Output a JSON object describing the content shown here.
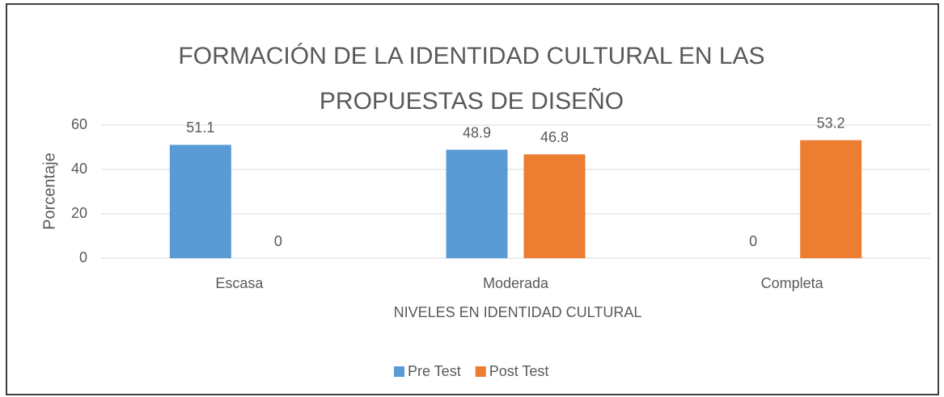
{
  "chart_data": {
    "type": "bar",
    "title": "FORMACIÓN DE LA IDENTIDAD CULTURAL EN LAS PROPUESTAS DE DISEÑO",
    "x_label": "NIVELES EN IDENTIDAD CULTURAL",
    "y_label": "Porcentaje",
    "categories": [
      "Escasa",
      "Moderada",
      "Completa"
    ],
    "series": [
      {
        "name": "Pre Test",
        "color": "#5b9bd5",
        "values": [
          51.1,
          48.9,
          0
        ]
      },
      {
        "name": "Post Test",
        "color": "#ed7d31",
        "values": [
          0,
          46.8,
          53.2
        ]
      }
    ],
    "ylim": [
      0,
      60
    ],
    "yticks": [
      0,
      20,
      40,
      60
    ],
    "grid": true,
    "legend": "bottom"
  }
}
